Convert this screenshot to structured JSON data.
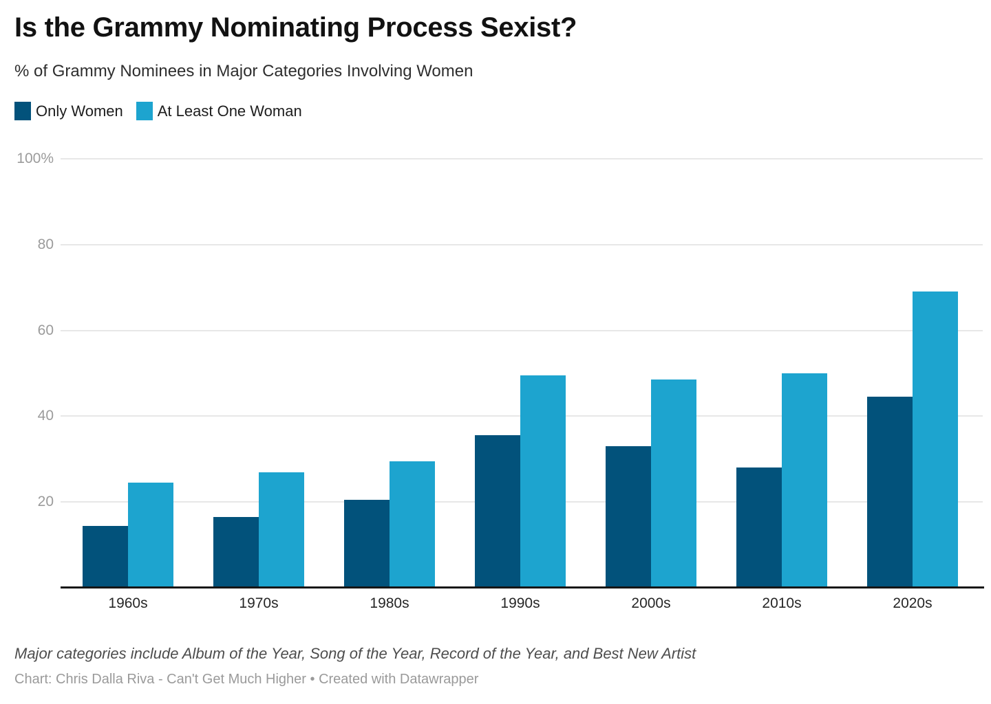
{
  "header": {
    "title": "Is the Grammy Nominating Process Sexist?",
    "subtitle": "% of Grammy Nominees in Major Categories Involving Women"
  },
  "chart_data": {
    "type": "bar",
    "title": "Is the Grammy Nominating Process Sexist?",
    "subtitle": "% of Grammy Nominees in Major Categories Involving Women",
    "categories": [
      "1960s",
      "1970s",
      "1980s",
      "1990s",
      "2000s",
      "2010s",
      "2020s"
    ],
    "series": [
      {
        "name": "Only Women",
        "color": "#02527b",
        "values": [
          14.5,
          16.5,
          20.5,
          35.5,
          33,
          28,
          44.5
        ]
      },
      {
        "name": "At Least One Woman",
        "color": "#1da4cf",
        "values": [
          24.5,
          27,
          29.5,
          49.5,
          48.5,
          50,
          69
        ]
      }
    ],
    "unit": "%",
    "xlabel": "",
    "ylabel": "",
    "ylim": [
      0,
      100
    ],
    "yticks": [
      {
        "value": 100,
        "label": "100%"
      },
      {
        "value": 80,
        "label": "80"
      },
      {
        "value": 60,
        "label": "60"
      },
      {
        "value": 40,
        "label": "40"
      },
      {
        "value": 20,
        "label": "20"
      }
    ],
    "grid": "horizontal",
    "legend_position": "top-left"
  },
  "footer": {
    "footnote": "Major categories include Album of the Year, Song of the Year, Record of the Year, and Best New Artist",
    "byline": "Chart: Chris Dalla Riva - Can't Get Much Higher • Created with Datawrapper"
  },
  "colors": {
    "series_dark": "#02527b",
    "series_light": "#1da4cf",
    "gridline": "#e7e7e7",
    "axis_line": "#161616",
    "y_tick_label": "#9b9b9b",
    "x_tick_label": "#262626",
    "background": "#ffffff"
  }
}
